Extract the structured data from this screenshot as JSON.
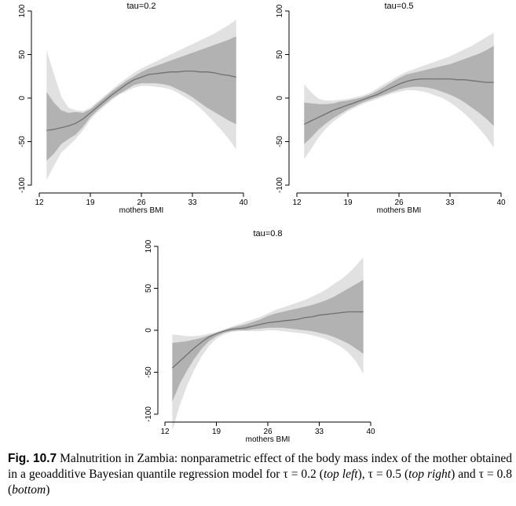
{
  "chart_data": [
    {
      "type": "area",
      "title": "tau=0.2",
      "xlabel": "mothers BMI",
      "ylabel": "",
      "xlim": [
        12,
        40
      ],
      "ylim": [
        -100,
        100
      ],
      "xticks": [
        "12",
        "19",
        "26",
        "33",
        "40"
      ],
      "yticks": [
        "-100",
        "-50",
        "0",
        "50",
        "100"
      ],
      "x": [
        13,
        14,
        15,
        16,
        17,
        18,
        19,
        20,
        21,
        22,
        23,
        24,
        25,
        26,
        27,
        28,
        29,
        30,
        31,
        32,
        33,
        34,
        35,
        36,
        37,
        38,
        39
      ],
      "mean": [
        -37,
        -36,
        -34,
        -32,
        -29,
        -24,
        -17,
        -10,
        -3,
        4,
        10,
        16,
        21,
        24,
        27,
        28,
        29,
        30,
        30,
        31,
        31,
        30,
        30,
        29,
        27,
        26,
        24
      ],
      "inner_upper": [
        7,
        -5,
        -14,
        -17,
        -16,
        -17,
        -13,
        -6,
        1,
        8,
        14,
        20,
        25,
        30,
        34,
        37,
        40,
        43,
        46,
        49,
        52,
        55,
        58,
        61,
        64,
        67,
        71
      ],
      "inner_lower": [
        -72,
        -64,
        -53,
        -47,
        -42,
        -33,
        -22,
        -14,
        -7,
        0,
        5,
        10,
        15,
        17,
        17,
        17,
        16,
        14,
        10,
        6,
        1,
        -5,
        -11,
        -16,
        -21,
        -26,
        -30
      ],
      "outer_upper": [
        55,
        28,
        2,
        -11,
        -14,
        -15,
        -11,
        -4,
        3,
        10,
        17,
        23,
        29,
        34,
        38,
        42,
        46,
        50,
        54,
        58,
        62,
        66,
        70,
        74,
        79,
        84,
        90
      ],
      "outer_lower": [
        -94,
        -78,
        -63,
        -55,
        -47,
        -37,
        -25,
        -16,
        -9,
        -2,
        4,
        8,
        12,
        14,
        14,
        13,
        12,
        10,
        6,
        1,
        -4,
        -11,
        -19,
        -28,
        -37,
        -47,
        -59
      ]
    },
    {
      "type": "area",
      "title": "tau=0.5",
      "xlabel": "mothers BMI",
      "ylabel": "",
      "xlim": [
        12,
        40
      ],
      "ylim": [
        -100,
        100
      ],
      "xticks": [
        "12",
        "19",
        "26",
        "33",
        "40"
      ],
      "yticks": [
        "-100",
        "-50",
        "0",
        "50",
        "100"
      ],
      "x": [
        13,
        14,
        15,
        16,
        17,
        18,
        19,
        20,
        21,
        22,
        23,
        24,
        25,
        26,
        27,
        28,
        29,
        30,
        31,
        32,
        33,
        34,
        35,
        36,
        37,
        38,
        39
      ],
      "mean": [
        -30,
        -26,
        -22,
        -18,
        -14,
        -11,
        -8,
        -5,
        -2,
        1,
        4,
        8,
        12,
        16,
        19,
        21,
        22,
        22,
        22,
        22,
        22,
        21,
        21,
        20,
        19,
        18,
        18
      ],
      "inner_upper": [
        -5,
        -6,
        -7,
        -7,
        -6,
        -4,
        -3,
        -1,
        1,
        4,
        8,
        13,
        18,
        23,
        27,
        29,
        31,
        33,
        35,
        37,
        39,
        42,
        45,
        48,
        51,
        55,
        60
      ],
      "inner_lower": [
        -53,
        -45,
        -36,
        -29,
        -23,
        -18,
        -13,
        -9,
        -5,
        -2,
        1,
        4,
        7,
        10,
        12,
        13,
        13,
        12,
        10,
        7,
        4,
        0,
        -5,
        -11,
        -17,
        -24,
        -32
      ],
      "outer_upper": [
        16,
        6,
        -1,
        -3,
        -3,
        -2,
        -1,
        1,
        3,
        6,
        11,
        16,
        21,
        26,
        30,
        33,
        36,
        39,
        42,
        45,
        48,
        52,
        56,
        60,
        65,
        70,
        75
      ],
      "outer_lower": [
        -70,
        -58,
        -45,
        -35,
        -27,
        -21,
        -15,
        -11,
        -7,
        -4,
        -1,
        2,
        5,
        7,
        9,
        9,
        8,
        6,
        3,
        0,
        -5,
        -11,
        -18,
        -26,
        -35,
        -45,
        -57
      ]
    },
    {
      "type": "area",
      "title": "tau=0.8",
      "xlabel": "mothers BMI",
      "ylabel": "",
      "xlim": [
        12,
        40
      ],
      "ylim": [
        -100,
        100
      ],
      "xticks": [
        "12",
        "19",
        "26",
        "33",
        "40"
      ],
      "yticks": [
        "-100",
        "-50",
        "0",
        "50",
        "100"
      ],
      "x": [
        13,
        14,
        15,
        16,
        17,
        18,
        19,
        20,
        21,
        22,
        23,
        24,
        25,
        26,
        27,
        28,
        29,
        30,
        31,
        32,
        33,
        34,
        35,
        36,
        37,
        38,
        39
      ],
      "mean": [
        -45,
        -37,
        -29,
        -21,
        -14,
        -8,
        -4,
        -1,
        1,
        2,
        3,
        5,
        7,
        9,
        10,
        11,
        12,
        13,
        15,
        16,
        18,
        19,
        20,
        21,
        22,
        22,
        22
      ],
      "inner_upper": [
        -15,
        -14,
        -13,
        -11,
        -9,
        -6,
        -3,
        0,
        3,
        5,
        7,
        10,
        13,
        17,
        20,
        22,
        24,
        26,
        28,
        30,
        33,
        36,
        40,
        45,
        50,
        55,
        60
      ],
      "inner_lower": [
        -85,
        -64,
        -48,
        -34,
        -22,
        -13,
        -7,
        -3,
        -1,
        0,
        0,
        1,
        2,
        3,
        3,
        3,
        2,
        1,
        0,
        -1,
        -3,
        -5,
        -8,
        -12,
        -16,
        -22,
        -28
      ],
      "outer_upper": [
        -5,
        -6,
        -7,
        -7,
        -6,
        -4,
        -2,
        1,
        4,
        7,
        10,
        13,
        16,
        20,
        24,
        27,
        30,
        33,
        36,
        40,
        44,
        49,
        55,
        61,
        68,
        77,
        87
      ],
      "outer_lower": [
        -120,
        -90,
        -66,
        -47,
        -31,
        -19,
        -10,
        -5,
        -2,
        -1,
        -1,
        -1,
        -1,
        0,
        0,
        -1,
        -2,
        -3,
        -4,
        -6,
        -8,
        -11,
        -15,
        -20,
        -27,
        -37,
        -52
      ]
    }
  ],
  "colors": {
    "outer_band": "#e1e1e1",
    "inner_band": "#b2b2b2",
    "mean_line": "#707070",
    "axis": "#000000"
  },
  "caption": {
    "label": "Fig. 10.7",
    "part1": " Malnutrition in Zambia: nonparametric effect of the body mass index of the mother obtained in a geoadditive Bayesian quantile regression model for ",
    "tau1": "τ = 0.2",
    "paren1": "top left",
    "tau2": "τ = 0.5",
    "paren2": "top right",
    "and_word": " and ",
    "tau3": "τ = 0.8",
    "paren3": "bottom"
  }
}
